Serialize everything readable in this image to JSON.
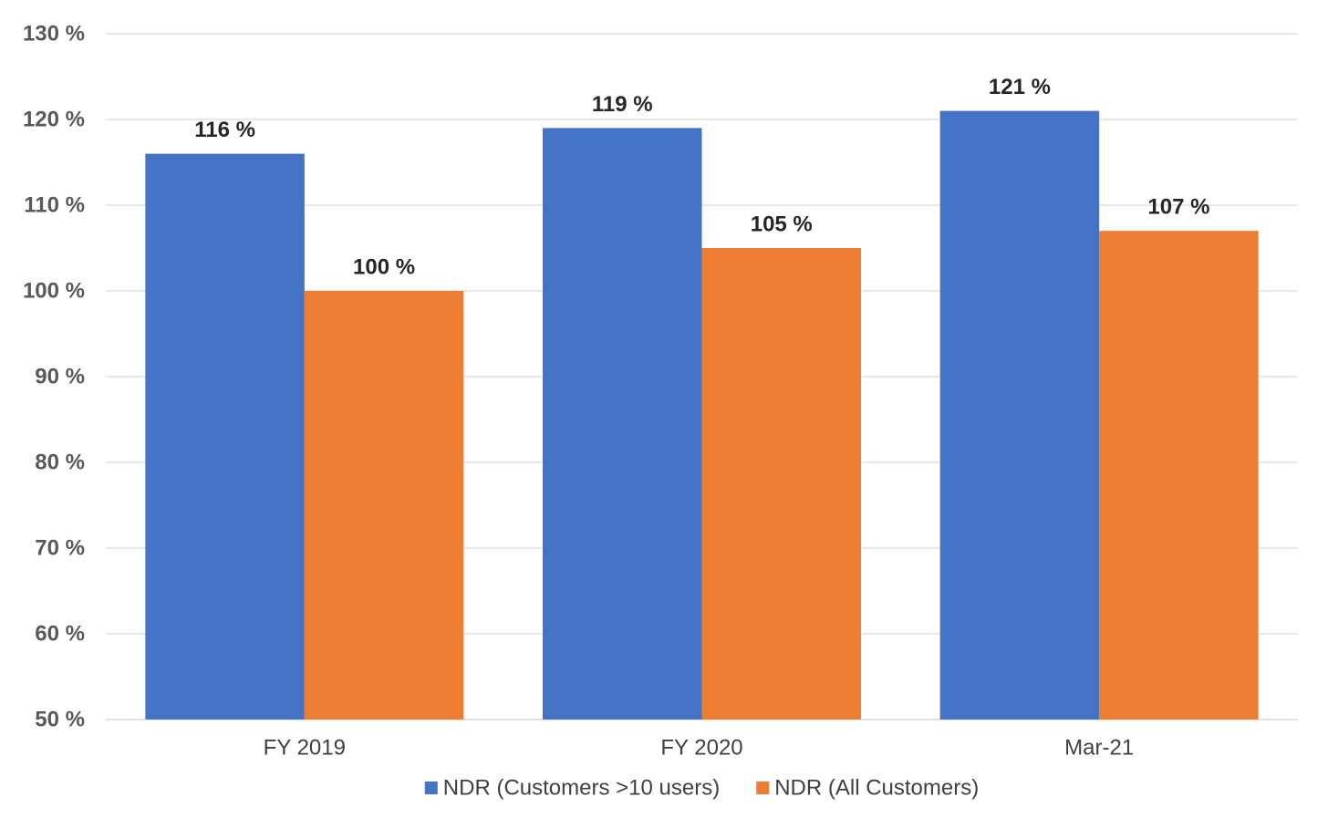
{
  "chart_data": {
    "type": "bar",
    "title": "",
    "xlabel": "",
    "ylabel": "",
    "categories": [
      "FY 2019",
      "FY 2020",
      "Mar-21"
    ],
    "series": [
      {
        "name": "NDR (Customers >10 users)",
        "values": [
          116,
          119,
          121
        ],
        "labels": [
          "116 %",
          "119 %",
          "121 %"
        ],
        "color": "#4472C4"
      },
      {
        "name": "NDR (All Customers)",
        "values": [
          100,
          105,
          107
        ],
        "labels": [
          "100 %",
          "105 %",
          "107 %"
        ],
        "color": "#ED7D31"
      }
    ],
    "ylim": [
      50,
      130
    ],
    "yticks": [
      50,
      60,
      70,
      80,
      90,
      100,
      110,
      120,
      130
    ],
    "ytick_labels": [
      "50 %",
      "60 %",
      "70 %",
      "80 %",
      "90 %",
      "100 %",
      "110 %",
      "120 %",
      "130 %"
    ],
    "grid": true,
    "legend_position": "bottom",
    "gridline_color": "#D9D9D9"
  }
}
